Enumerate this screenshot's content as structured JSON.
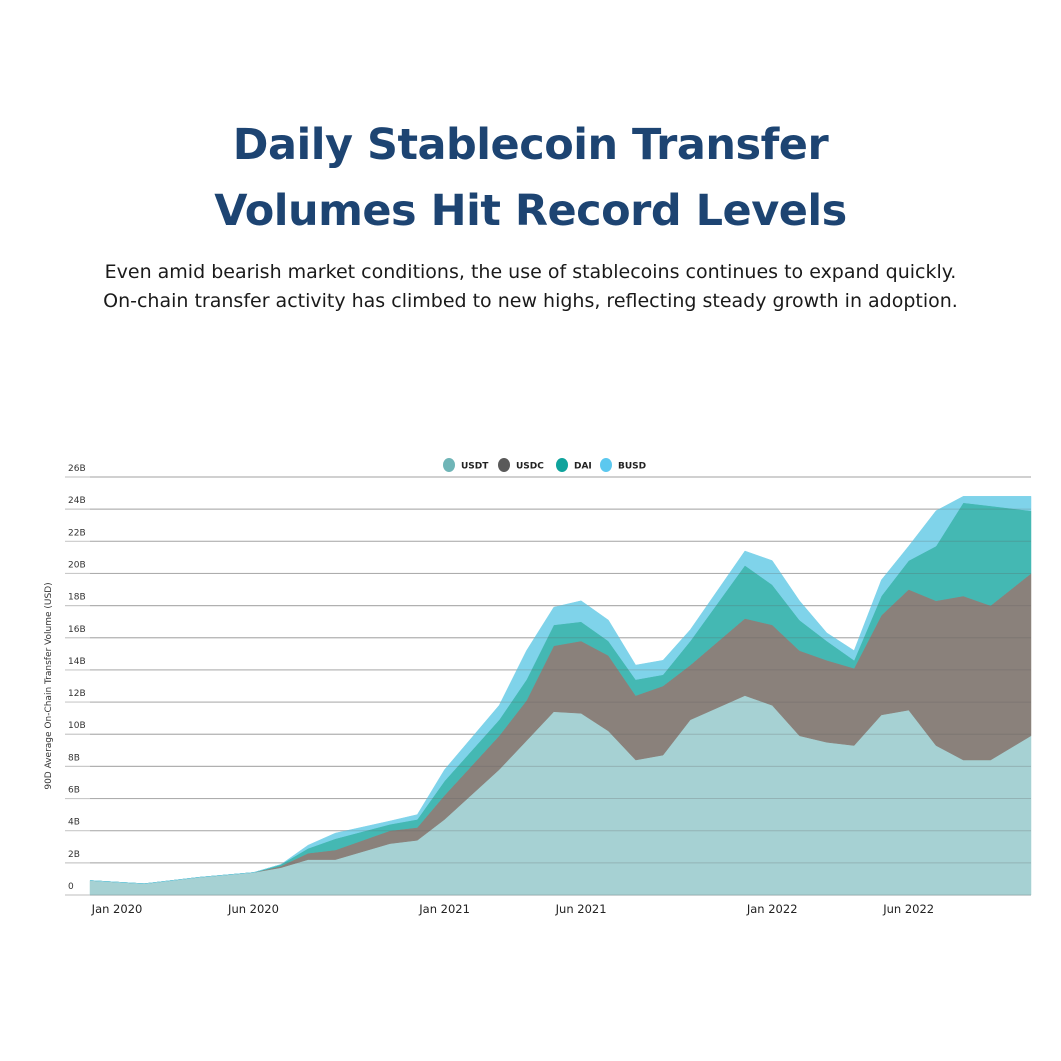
{
  "header": {
    "title_line1": "Daily Stablecoin Transfer",
    "title_line2": "Volumes Hit Record Levels",
    "subtitle_line1": "Even amid bearish market conditions, the use of stablecoins continues to expand quickly.",
    "subtitle_line2": "On-chain transfer activity has climbed to new highs, reflecting steady growth in adoption."
  },
  "chart_data": {
    "type": "area",
    "stacked": true,
    "title": "",
    "xlabel": "",
    "ylabel": "90D Average On-Chain Transfer Volume (USD)",
    "ylim": [
      0,
      26
    ],
    "yticks": [
      "0",
      "2B",
      "4B",
      "6B",
      "8B",
      "10B",
      "12B",
      "14B",
      "16B",
      "18B",
      "20B",
      "22B",
      "24B",
      "26B"
    ],
    "xticks": [
      {
        "label": "Jan 2020",
        "date": "2020-01"
      },
      {
        "label": "Jun 2020",
        "date": "2020-06"
      },
      {
        "label": "Jan 2021",
        "date": "2021-01"
      },
      {
        "label": "Jun 2021",
        "date": "2021-06"
      },
      {
        "label": "Jan 2022",
        "date": "2022-01"
      },
      {
        "label": "Jun 2022",
        "date": "2022-06"
      }
    ],
    "grid": true,
    "legend_position": "top",
    "x": [
      "2019-12",
      "2020-02",
      "2020-04",
      "2020-06",
      "2020-07",
      "2020-08",
      "2020-09",
      "2020-11",
      "2020-12",
      "2021-01",
      "2021-03",
      "2021-04",
      "2021-05",
      "2021-06",
      "2021-07",
      "2021-08",
      "2021-09",
      "2021-10",
      "2021-12",
      "2022-01",
      "2022-02",
      "2022-03",
      "2022-04",
      "2022-05",
      "2022-06",
      "2022-07",
      "2022-08",
      "2022-09",
      "2022-10"
    ],
    "series": [
      {
        "name": "USDT",
        "color": "#a6d1d3",
        "legend_color": "#6fb5b7",
        "values": [
          0.9,
          0.7,
          1.1,
          1.4,
          1.7,
          2.2,
          2.2,
          3.2,
          3.4,
          4.7,
          7.8,
          9.6,
          11.4,
          11.3,
          10.2,
          8.4,
          8.7,
          10.9,
          12.4,
          11.8,
          9.9,
          9.5,
          9.3,
          11.2,
          11.5,
          9.3,
          8.4,
          8.4,
          9.9
        ]
      },
      {
        "name": "USDC",
        "color": "#8a817b",
        "legend_color": "#5a5a5a",
        "values": [
          0,
          0,
          0,
          0,
          0.1,
          0.4,
          0.6,
          0.8,
          0.8,
          1.5,
          2.1,
          2.5,
          4.1,
          4.5,
          4.7,
          4.0,
          4.3,
          3.4,
          4.8,
          5.0,
          5.3,
          5.1,
          4.8,
          6.2,
          7.5,
          9.0,
          10.2,
          9.6,
          10.1
        ]
      },
      {
        "name": "DAI",
        "color": "#44b8b3",
        "legend_color": "#0fa39c",
        "values": [
          0,
          0,
          0,
          0,
          0.1,
          0.3,
          0.7,
          0.4,
          0.5,
          0.9,
          1.0,
          1.3,
          1.3,
          1.2,
          0.9,
          1.0,
          0.7,
          1.5,
          3.3,
          2.5,
          1.9,
          1.2,
          0.5,
          1.2,
          1.8,
          3.4,
          5.8,
          6.2,
          3.9
        ]
      },
      {
        "name": "BUSD",
        "color": "#7fd3ea",
        "legend_color": "#5cc8ef",
        "values": [
          0,
          0,
          0,
          0,
          0,
          0.2,
          0.35,
          0.2,
          0.3,
          0.7,
          0.9,
          1.8,
          1.1,
          1.3,
          1.3,
          0.9,
          0.9,
          0.7,
          0.9,
          1.5,
          1.2,
          0.5,
          0.6,
          1.0,
          0.9,
          2.2,
          0.4,
          0.6,
          0.9
        ]
      }
    ]
  }
}
